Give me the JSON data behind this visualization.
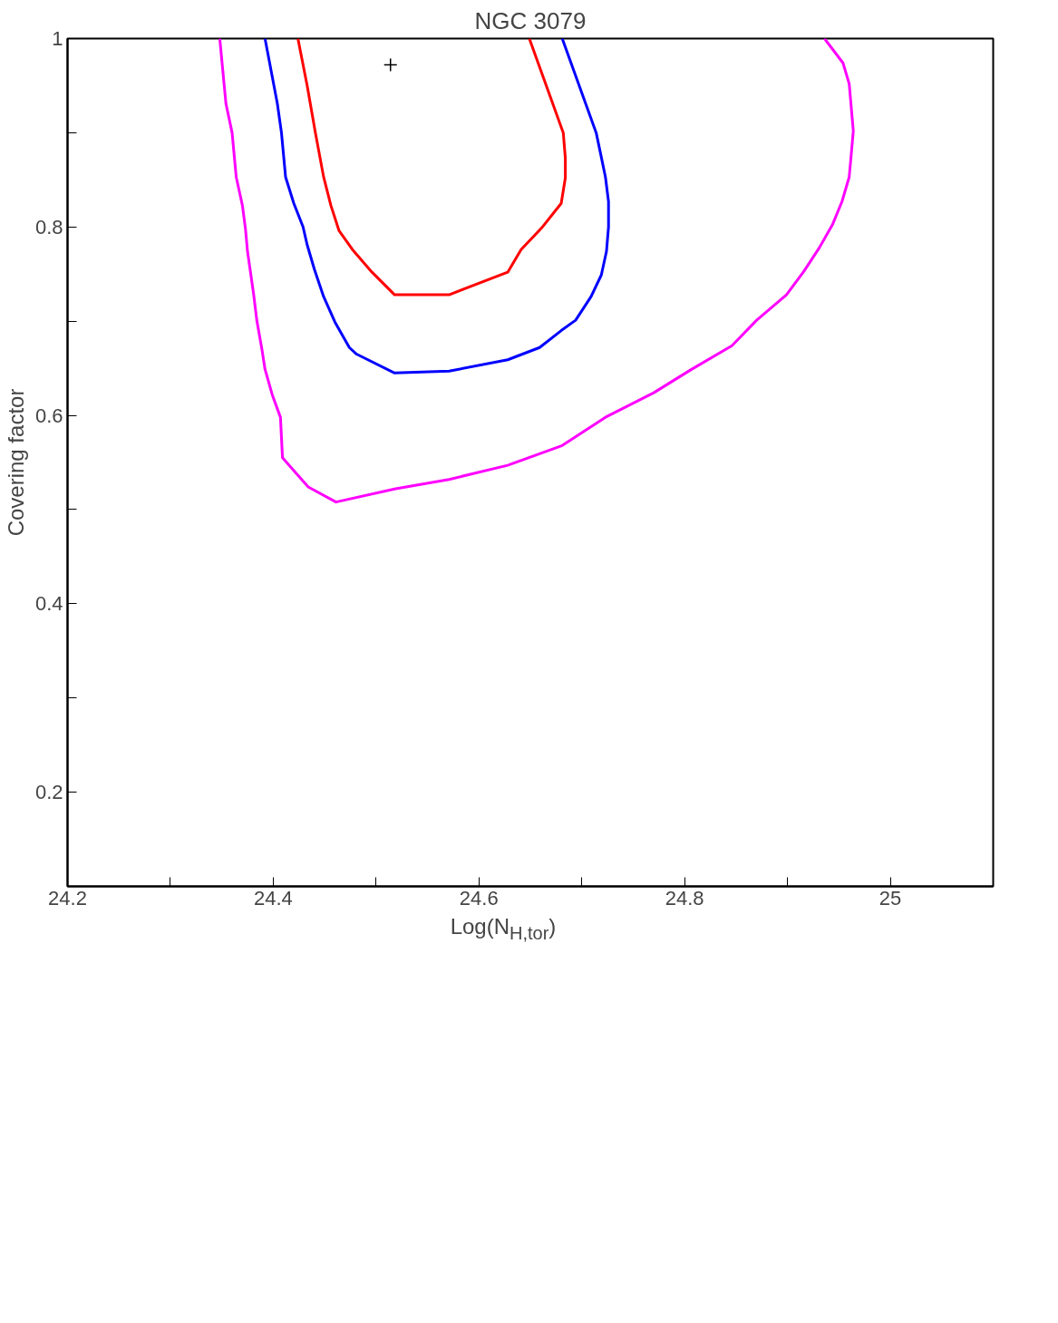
{
  "chart_data": {
    "type": "line",
    "title": "NGC 3079",
    "xlabel": "Log(N$_{H,tor}$)",
    "ylabel": "Covering factor",
    "xlim": [
      24.2,
      25.1
    ],
    "ylim": [
      0.1,
      1
    ],
    "xticks": [
      24.2,
      {
        "value": 24.3,
        "label": null
      },
      24.4,
      {
        "value": 24.5,
        "label": null
      },
      24.6,
      {
        "value": 24.7,
        "label": null
      },
      24.8,
      {
        "value": 24.9,
        "label": null
      },
      25,
      {
        "value": 25.1,
        "label": null
      }
    ],
    "yticks": [
      0.2,
      {
        "value": 0.3,
        "label": null
      },
      0.4,
      {
        "value": 0.5,
        "label": null
      },
      0.6,
      {
        "value": 0.7,
        "label": null
      },
      0.8,
      {
        "value": 0.9,
        "label": null
      },
      1
    ],
    "line_style": "solid",
    "series": [
      {
        "color": "#ff0000",
        "x": [
          24.424,
          24.433,
          24.441,
          24.449,
          24.456,
          24.464,
          24.477,
          24.496,
          24.518,
          24.571,
          24.628,
          24.641,
          24.661,
          24.68,
          24.684,
          24.684,
          24.682,
          24.649
        ],
        "values": [
          1,
          0.95,
          0.9,
          0.853,
          0.823,
          0.796,
          0.776,
          0.752,
          0.728,
          0.728,
          0.752,
          0.776,
          0.799,
          0.825,
          0.852,
          0.873,
          0.9,
          1
        ]
      },
      {
        "color": "#0000ff",
        "x": [
          24.392,
          24.404,
          24.408,
          24.412,
          24.42,
          24.429,
          24.433,
          24.44,
          24.449,
          24.46,
          24.474,
          24.481,
          24.518,
          24.571,
          24.628,
          24.659,
          24.68,
          24.694,
          24.709,
          24.719,
          24.724,
          24.726,
          24.726,
          24.723,
          24.719,
          24.714,
          24.681
        ],
        "values": [
          1,
          0.931,
          0.9,
          0.853,
          0.825,
          0.8,
          0.781,
          0.755,
          0.726,
          0.699,
          0.672,
          0.665,
          0.645,
          0.647,
          0.659,
          0.672,
          0.69,
          0.701,
          0.726,
          0.749,
          0.774,
          0.8,
          0.827,
          0.853,
          0.874,
          0.9,
          1
        ]
      },
      {
        "color": "#ff00ff",
        "x": [
          24.348,
          24.354,
          24.36,
          24.364,
          24.37,
          24.373,
          24.375,
          24.381,
          24.384,
          24.389,
          24.392,
          24.399,
          24.407,
          24.409,
          24.434,
          24.461,
          24.519,
          24.571,
          24.628,
          24.681,
          24.723,
          24.77,
          24.807,
          24.846,
          24.87,
          24.899,
          24.916,
          24.931,
          24.944,
          24.953,
          24.96,
          24.962,
          24.964,
          24.962,
          24.96,
          24.954,
          24.936
        ],
        "values": [
          1,
          0.931,
          0.9,
          0.853,
          0.823,
          0.798,
          0.774,
          0.728,
          0.701,
          0.67,
          0.649,
          0.622,
          0.598,
          0.555,
          0.524,
          0.508,
          0.522,
          0.532,
          0.547,
          0.568,
          0.598,
          0.624,
          0.649,
          0.674,
          0.701,
          0.728,
          0.753,
          0.778,
          0.803,
          0.827,
          0.853,
          0.877,
          0.902,
          0.927,
          0.952,
          0.974,
          1
        ]
      },
      {
        "type": "scatter",
        "marker": "cross",
        "color": "#000000",
        "x": [
          24.514
        ],
        "values": [
          0.972
        ]
      }
    ]
  }
}
